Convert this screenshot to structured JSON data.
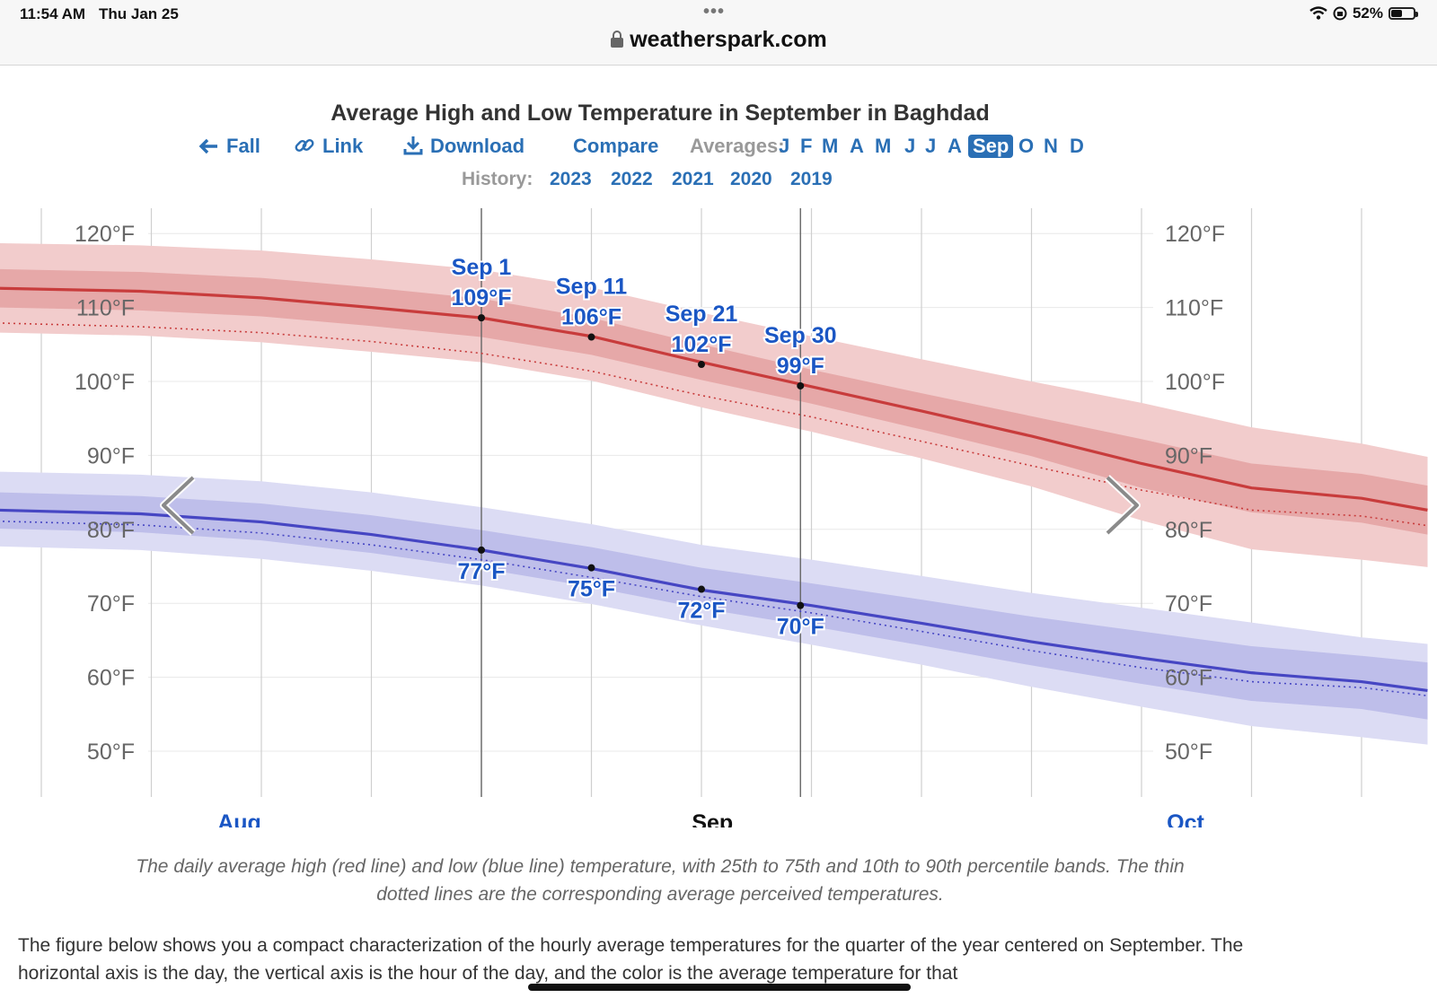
{
  "status_bar": {
    "time": "11:54 AM",
    "date": "Thu Jan 25",
    "battery": "52%",
    "battery_level": 0.52,
    "url": "weatherspark.com"
  },
  "chart_title": "Average High and Low Temperature in September in Baghdad",
  "nav": {
    "fall": "Fall",
    "link": "Link",
    "download": "Download",
    "compare": "Compare",
    "averages_label": "Averages:",
    "months": [
      "J",
      "F",
      "M",
      "A",
      "M",
      "J",
      "J",
      "A",
      "Sep",
      "O",
      "N",
      "D"
    ],
    "active_month": "Sep",
    "history_label": "History:",
    "years": [
      "2023",
      "2022",
      "2021",
      "2020",
      "2019"
    ]
  },
  "colors": {
    "accent": "#2a6fb5",
    "high": "#c83c3c",
    "low": "#4646c3",
    "high_band_outer": "#f2cccc",
    "high_band_inner": "#e6a8a8",
    "low_band_outer": "#dcdcf4",
    "low_band_inner": "#bebeea"
  },
  "chart_data": {
    "type": "line",
    "title": "Average High and Low Temperature in September in Baghdad",
    "x_unit": "day offset from Sep 1",
    "xlim": [
      -44,
      86
    ],
    "ylim": [
      45,
      123
    ],
    "y_ticks": [
      120,
      110,
      100,
      90,
      80,
      70,
      60,
      50
    ],
    "y_tick_labels": [
      "120°F",
      "110°F",
      "100°F",
      "90°F",
      "80°F",
      "70°F",
      "60°F",
      "50°F"
    ],
    "month_labels": [
      {
        "label": "Aug",
        "x": -22,
        "highlight": false
      },
      {
        "label": "Sep",
        "x": 21,
        "highlight": true
      },
      {
        "label": "Oct",
        "x": 64,
        "highlight": false
      }
    ],
    "month_starts": [
      -31,
      0,
      30,
      61
    ],
    "week_gridlines": [
      -40,
      -30,
      -20,
      -10,
      0,
      10,
      20,
      30,
      40,
      50,
      60,
      70,
      80
    ],
    "highlight_range": [
      0,
      29
    ],
    "x": [
      -44,
      -31,
      -20,
      -10,
      0,
      10,
      20,
      30,
      40,
      50,
      60,
      70,
      80,
      86
    ],
    "series": [
      {
        "name": "Average High",
        "values": [
          112.6,
          112.2,
          111.3,
          110.0,
          108.6,
          106.1,
          102.6,
          99.3,
          96.0,
          92.6,
          88.9,
          85.6,
          84.2,
          82.6
        ]
      },
      {
        "name": "High Perceived",
        "values": [
          107.9,
          107.4,
          106.6,
          105.4,
          103.8,
          101.4,
          98.1,
          95.2,
          91.9,
          88.6,
          85.3,
          82.6,
          81.8,
          80.5
        ]
      },
      {
        "name": "High 25th pct",
        "values": [
          110.0,
          109.6,
          108.8,
          107.5,
          106.0,
          103.6,
          100.2,
          97.0,
          93.5,
          89.9,
          85.6,
          82.3,
          80.9,
          79.3
        ]
      },
      {
        "name": "High 75th pct",
        "values": [
          115.2,
          114.8,
          114.0,
          112.7,
          111.2,
          108.6,
          105.0,
          101.6,
          98.4,
          95.3,
          92.2,
          88.9,
          87.5,
          85.9
        ]
      },
      {
        "name": "High 10th pct",
        "values": [
          106.6,
          106.2,
          105.3,
          104.0,
          102.6,
          100.1,
          96.5,
          93.2,
          89.6,
          85.8,
          81.2,
          77.3,
          75.9,
          74.9
        ]
      },
      {
        "name": "High 90th pct",
        "values": [
          118.7,
          118.4,
          117.7,
          116.5,
          115.1,
          112.7,
          109.3,
          106.1,
          103.0,
          100.0,
          97.1,
          93.8,
          91.6,
          89.8
        ]
      },
      {
        "name": "Average Low",
        "values": [
          82.6,
          82.1,
          81.0,
          79.3,
          77.2,
          74.7,
          71.8,
          69.7,
          67.3,
          64.8,
          62.6,
          60.6,
          59.4,
          58.2
        ]
      },
      {
        "name": "Low Perceived",
        "values": [
          81.1,
          80.6,
          79.5,
          77.9,
          75.9,
          73.5,
          70.9,
          68.7,
          66.2,
          63.6,
          61.3,
          59.4,
          58.6,
          57.5
        ]
      },
      {
        "name": "Low 25th pct",
        "values": [
          80.1,
          79.6,
          78.5,
          76.8,
          74.7,
          72.2,
          69.3,
          66.9,
          64.3,
          61.6,
          59.1,
          56.8,
          55.7,
          54.3
        ]
      },
      {
        "name": "Low 75th pct",
        "values": [
          85.0,
          84.5,
          83.5,
          81.9,
          79.9,
          77.6,
          74.8,
          72.7,
          70.5,
          68.2,
          66.2,
          64.2,
          62.9,
          62.0
        ]
      },
      {
        "name": "Low 10th pct",
        "values": [
          77.7,
          77.2,
          76.0,
          74.4,
          72.4,
          69.9,
          67.0,
          64.4,
          61.7,
          58.7,
          56.0,
          53.4,
          51.9,
          50.9
        ]
      },
      {
        "name": "Low 90th pct",
        "values": [
          87.8,
          87.4,
          86.5,
          85.0,
          83.0,
          80.7,
          77.9,
          75.9,
          73.7,
          71.4,
          69.4,
          67.4,
          65.4,
          64.5
        ]
      }
    ],
    "annotations": [
      {
        "x": 0,
        "high": 108.6,
        "low": 77.2,
        "date_label": "Sep 1",
        "high_label": "109°F",
        "low_label": "77°F"
      },
      {
        "x": 10,
        "high": 106.0,
        "low": 74.8,
        "date_label": "Sep 11",
        "high_label": "106°F",
        "low_label": "75°F"
      },
      {
        "x": 20,
        "high": 102.3,
        "low": 71.9,
        "date_label": "Sep 21",
        "high_label": "102°F",
        "low_label": "72°F"
      },
      {
        "x": 29,
        "high": 99.4,
        "low": 69.7,
        "date_label": "Sep 30",
        "high_label": "99°F",
        "low_label": "70°F"
      }
    ]
  },
  "caption": "The daily average high (red line) and low (blue line) temperature, with 25th to 75th and 10th to 90th percentile bands. The thin dotted lines are the corresponding average perceived temperatures.",
  "body_text": "The figure below shows you a compact characterization of the hourly average temperatures for the quarter of the year centered on September. The horizontal axis is the day, the vertical axis is the hour of the day, and the color is the average temperature for that"
}
